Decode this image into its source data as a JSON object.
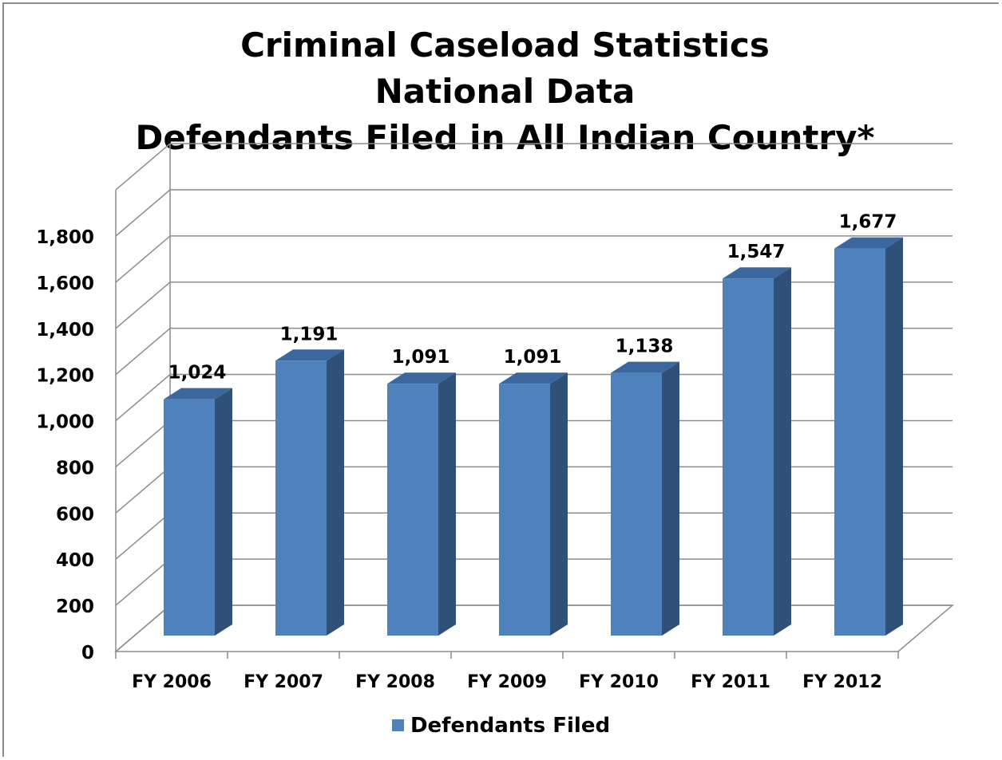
{
  "chart_data": {
    "type": "bar",
    "title": [
      "Criminal Caseload Statistics",
      "National Data",
      "Defendants Filed in All Indian Country*"
    ],
    "categories": [
      "FY 2006",
      "FY 2007",
      "FY 2008",
      "FY 2009",
      "FY 2010",
      "FY 2011",
      "FY 2012"
    ],
    "series": [
      {
        "name": "Defendants Filed",
        "values": [
          1024,
          1191,
          1091,
          1091,
          1138,
          1547,
          1677
        ],
        "data_labels": [
          "1,024",
          "1,191",
          "1,091",
          "1,091",
          "1,138",
          "1,547",
          "1,677"
        ],
        "color": "#4F81BD"
      }
    ],
    "ylim": [
      0,
      1800
    ],
    "y_ticks": [
      0,
      200,
      400,
      600,
      800,
      1000,
      1200,
      1400,
      1600,
      1800
    ],
    "y_tick_labels": [
      "0",
      "200",
      "400",
      "600",
      "800",
      "1,000",
      "1,200",
      "1,400",
      "1,600",
      "1,800"
    ],
    "grid": true,
    "style": "3d-column",
    "legend_position": "bottom",
    "colors": {
      "bar_front": "#4F81BD",
      "bar_side": "#2F5077",
      "bar_top": "#3C679C",
      "grid": "#8c8c8c"
    }
  }
}
